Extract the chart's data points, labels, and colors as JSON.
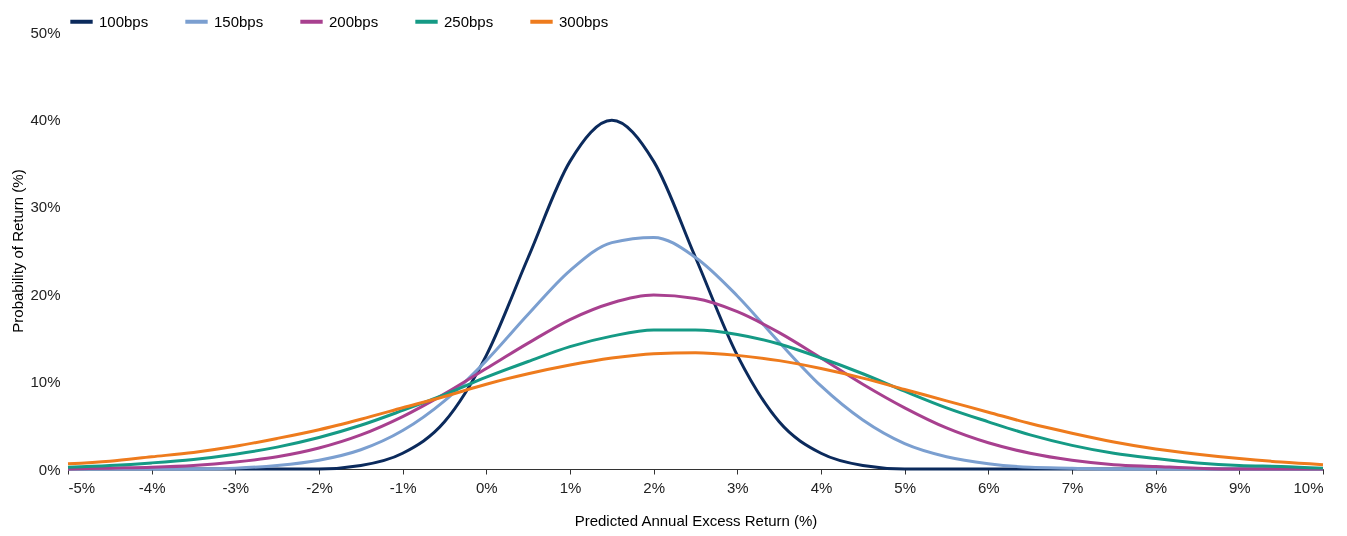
{
  "chart_data": {
    "type": "line",
    "xlabel": "Predicted Annual Excess Return (%)",
    "ylabel": "Probability of Return (%)",
    "x": [
      -5,
      -4.5,
      -4,
      -3.5,
      -3,
      -2.5,
      -2,
      -1.5,
      -1,
      -0.5,
      0,
      0.5,
      1,
      1.5,
      2,
      2.5,
      3,
      3.5,
      4,
      4.5,
      5,
      5.5,
      6,
      6.5,
      7,
      7.5,
      8,
      8.5,
      9,
      9.5,
      10
    ],
    "series": [
      {
        "name": "100bps",
        "color": "#0b2a5c",
        "values": [
          0,
          0,
          0,
          0,
          0,
          0,
          0,
          0.4,
          1.8,
          5.4,
          13,
          24.2,
          35.2,
          39.9,
          35.2,
          24.2,
          13,
          5.4,
          1.8,
          0.4,
          0,
          0,
          0,
          0,
          0,
          0,
          0,
          0,
          0,
          0,
          0
        ]
      },
      {
        "name": "150bps",
        "color": "#7b9fd0",
        "values": [
          0,
          0,
          0,
          0,
          0.1,
          0.4,
          1,
          2.2,
          4.4,
          7.8,
          12.4,
          17.7,
          22.7,
          25.9,
          26.5,
          24.2,
          19.8,
          14.5,
          9.5,
          5.6,
          2.9,
          1.4,
          0.6,
          0.2,
          0.1,
          0,
          0,
          0,
          0,
          0,
          0
        ]
      },
      {
        "name": "200bps",
        "color": "#a8408f",
        "values": [
          0,
          0.1,
          0.2,
          0.4,
          0.8,
          1.4,
          2.4,
          3.9,
          6,
          8.6,
          11.5,
          14.4,
          17.1,
          19,
          19.9,
          19.5,
          18,
          15.6,
          12.7,
          9.7,
          7,
          4.7,
          3,
          1.8,
          1,
          0.5,
          0.3,
          0.1,
          0,
          0,
          0
        ]
      },
      {
        "name": "250bps",
        "color": "#159a85",
        "values": [
          0.2,
          0.4,
          0.7,
          1.1,
          1.7,
          2.5,
          3.6,
          5,
          6.7,
          8.5,
          10.5,
          12.3,
          14,
          15.2,
          15.9,
          15.9,
          15.4,
          14.3,
          12.7,
          10.9,
          8.9,
          7,
          5.4,
          3.9,
          2.7,
          1.8,
          1.2,
          0.7,
          0.4,
          0.3,
          0.1
        ]
      },
      {
        "name": "300bps",
        "color": "#ee7b1d",
        "values": [
          0.6,
          0.9,
          1.4,
          1.9,
          2.6,
          3.5,
          4.5,
          5.7,
          7,
          8.3,
          9.7,
          10.9,
          11.9,
          12.7,
          13.2,
          13.3,
          13,
          12.4,
          11.5,
          10.4,
          9.1,
          7.8,
          6.5,
          5.2,
          4.1,
          3.1,
          2.3,
          1.7,
          1.2,
          0.8,
          0.5
        ]
      }
    ],
    "xlim": [
      -5,
      10
    ],
    "xticks": [
      {
        "value": -5,
        "label": "-5%"
      },
      {
        "value": -4,
        "label": "-4%"
      },
      {
        "value": -3,
        "label": "-3%"
      },
      {
        "value": -2,
        "label": "-2%"
      },
      {
        "value": -1,
        "label": "-1%"
      },
      {
        "value": 0,
        "label": "0%"
      },
      {
        "value": 1,
        "label": "1%"
      },
      {
        "value": 2,
        "label": "2%"
      },
      {
        "value": 3,
        "label": "3%"
      },
      {
        "value": 4,
        "label": "4%"
      },
      {
        "value": 5,
        "label": "5%"
      },
      {
        "value": 6,
        "label": "6%"
      },
      {
        "value": 7,
        "label": "7%"
      },
      {
        "value": 8,
        "label": "8%"
      },
      {
        "value": 9,
        "label": "9%"
      },
      {
        "value": 10,
        "label": "10%"
      }
    ],
    "ylim": [
      0,
      50
    ],
    "yticks": [
      {
        "value": 0,
        "label": "0%"
      },
      {
        "value": 10,
        "label": "10%"
      },
      {
        "value": 20,
        "label": "20%"
      },
      {
        "value": 30,
        "label": "30%"
      },
      {
        "value": 40,
        "label": "40%"
      },
      {
        "value": 50,
        "label": "50%"
      }
    ],
    "grid": false,
    "legend": "top",
    "marker": "none",
    "line_style": "solid"
  }
}
